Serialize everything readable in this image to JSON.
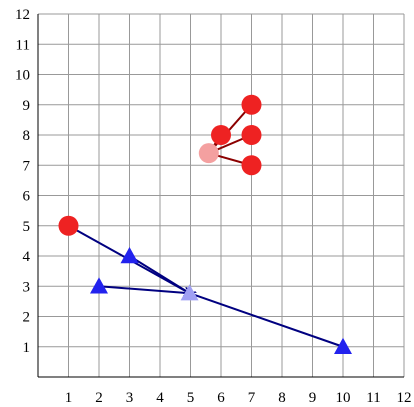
{
  "chart_data": {
    "type": "scatter",
    "title": "",
    "xlabel": "",
    "ylabel": "",
    "xlim": [
      0,
      12
    ],
    "ylim": [
      0,
      12
    ],
    "xticks": [
      "1",
      "2",
      "3",
      "4",
      "5",
      "6",
      "7",
      "8",
      "9",
      "10",
      "11",
      "12"
    ],
    "yticks": [
      "1",
      "2",
      "3",
      "4",
      "5",
      "6",
      "7",
      "8",
      "9",
      "10",
      "11",
      "12"
    ],
    "grid": true,
    "legend": "none",
    "series": [
      {
        "marker": "circle",
        "color": "#ee2222",
        "points": [
          [
            1,
            5
          ],
          [
            6,
            8
          ],
          [
            7,
            9
          ],
          [
            7,
            8
          ],
          [
            7,
            7
          ]
        ]
      },
      {
        "marker": "triangle",
        "color": "#2222ee",
        "points": [
          [
            2,
            3
          ],
          [
            3,
            4
          ],
          [
            10,
            1
          ]
        ]
      }
    ],
    "centroids": [
      {
        "marker": "circle",
        "color": "#f4a0a0",
        "point": [
          5.6,
          7.4
        ]
      },
      {
        "marker": "triangle",
        "color": "#a0a0f4",
        "point": [
          4.97,
          2.77
        ]
      }
    ],
    "arrows": [
      {
        "from": [
          7,
          9
        ],
        "to": [
          5.6,
          7.4
        ],
        "color": "#8b0000"
      },
      {
        "from": [
          6,
          8
        ],
        "to": [
          5.6,
          7.4
        ],
        "color": "#8b0000"
      },
      {
        "from": [
          7,
          8
        ],
        "to": [
          5.6,
          7.4
        ],
        "color": "#8b0000"
      },
      {
        "from": [
          7,
          7
        ],
        "to": [
          5.6,
          7.4
        ],
        "color": "#8b0000"
      },
      {
        "from": [
          1,
          5
        ],
        "to": [
          4.97,
          2.77
        ],
        "color": "#000080"
      },
      {
        "from": [
          3,
          4
        ],
        "to": [
          4.97,
          2.77
        ],
        "color": "#000080"
      },
      {
        "from": [
          2,
          3
        ],
        "to": [
          4.97,
          2.77
        ],
        "color": "#000080"
      },
      {
        "from": [
          10,
          1
        ],
        "to": [
          4.97,
          2.77
        ],
        "color": "#000080"
      }
    ]
  }
}
